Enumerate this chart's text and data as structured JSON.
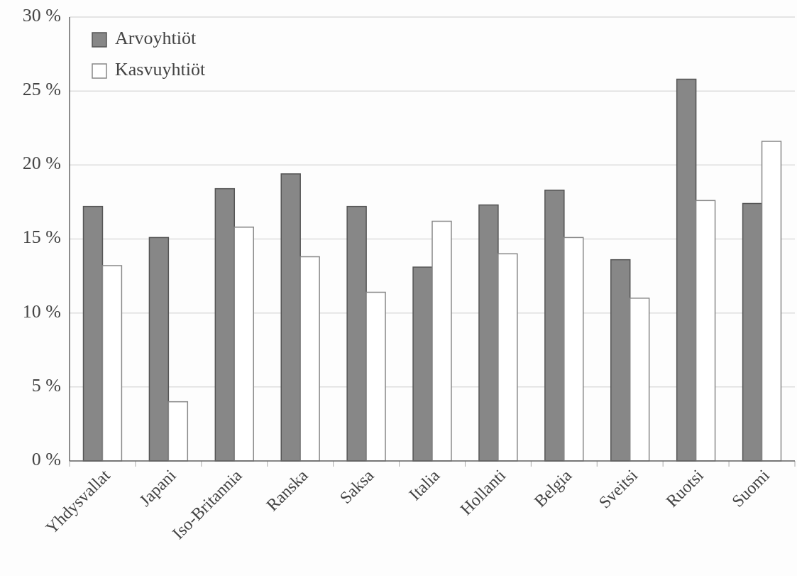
{
  "chart_data": {
    "type": "bar",
    "categories": [
      "Yhdysvallat",
      "Japani",
      "Iso-Britannia",
      "Ranska",
      "Saksa",
      "Italia",
      "Hollanti",
      "Belgia",
      "Sveitsi",
      "Ruotsi",
      "Suomi"
    ],
    "series": [
      {
        "name": "Arvoyhtiöt",
        "color": "#878787",
        "values": [
          17.2,
          15.1,
          18.4,
          19.4,
          17.2,
          13.1,
          17.3,
          18.3,
          13.6,
          25.8,
          17.4
        ]
      },
      {
        "name": "Kasvuyhtiöt",
        "color": "#ffffff",
        "values": [
          13.2,
          4.0,
          15.8,
          13.8,
          11.4,
          16.2,
          14.0,
          15.1,
          11.0,
          17.6,
          21.6
        ]
      }
    ],
    "ylim": [
      0,
      30
    ],
    "yticks": [
      {
        "value": 0,
        "label": "0 %"
      },
      {
        "value": 5,
        "label": "5 %"
      },
      {
        "value": 10,
        "label": "10 %"
      },
      {
        "value": 15,
        "label": "15 %"
      },
      {
        "value": 20,
        "label": "20 %"
      },
      {
        "value": 25,
        "label": "25 %"
      },
      {
        "value": 30,
        "label": "30 %"
      }
    ],
    "grid": "y",
    "legend": "top left"
  }
}
